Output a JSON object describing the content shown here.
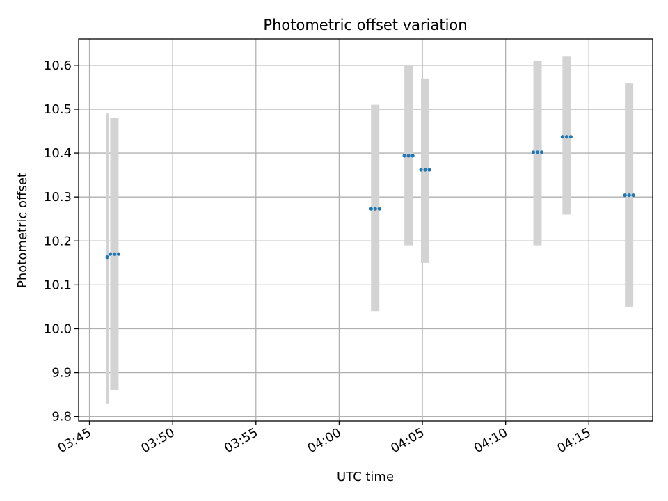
{
  "chart_data": {
    "type": "scatter",
    "title": "Photometric offset variation",
    "xlabel": "UTC time",
    "ylabel": "Photometric offset",
    "x_ticks": [
      "03:45",
      "03:50",
      "03:55",
      "04:00",
      "04:05",
      "04:10",
      "04:15"
    ],
    "x_tick_minutes": [
      225,
      230,
      235,
      240,
      245,
      250,
      255
    ],
    "y_ticks": [
      "9.8",
      "9.9",
      "10.0",
      "10.1",
      "10.2",
      "10.3",
      "10.4",
      "10.5",
      "10.6"
    ],
    "y_tick_values": [
      9.8,
      9.9,
      10.0,
      10.1,
      10.2,
      10.3,
      10.4,
      10.5,
      10.6
    ],
    "xlim": [
      "03:44:21",
      "04:18:50"
    ],
    "ylim": [
      9.79,
      10.66
    ],
    "grid": true,
    "colors": {
      "points": "#1f77b4",
      "error_bars": "#d3d3d3",
      "grid": "#b0b0b0"
    },
    "error_bars": [
      {
        "time": "03:46:04",
        "low": 9.83,
        "high": 10.49,
        "width": "thin"
      },
      {
        "time": "03:46:30",
        "low": 9.86,
        "high": 10.48,
        "width": "wide"
      },
      {
        "time": "04:02:10",
        "low": 10.04,
        "high": 10.51,
        "width": "wide"
      },
      {
        "time": "04:04:10",
        "low": 10.19,
        "high": 10.6,
        "width": "wide"
      },
      {
        "time": "04:05:10",
        "low": 10.15,
        "high": 10.57,
        "width": "wide"
      },
      {
        "time": "04:11:55",
        "low": 10.19,
        "high": 10.61,
        "width": "wide"
      },
      {
        "time": "04:13:40",
        "low": 10.26,
        "high": 10.62,
        "width": "wide"
      },
      {
        "time": "04:17:25",
        "low": 10.05,
        "high": 10.56,
        "width": "wide"
      }
    ],
    "points": [
      {
        "time": "03:46:04",
        "value": 10.163
      },
      {
        "time": "03:46:15",
        "value": 10.17
      },
      {
        "time": "03:46:30",
        "value": 10.17
      },
      {
        "time": "03:46:45",
        "value": 10.17
      },
      {
        "time": "04:01:55",
        "value": 10.273
      },
      {
        "time": "04:02:10",
        "value": 10.273
      },
      {
        "time": "04:02:25",
        "value": 10.273
      },
      {
        "time": "04:03:55",
        "value": 10.394
      },
      {
        "time": "04:04:10",
        "value": 10.394
      },
      {
        "time": "04:04:25",
        "value": 10.394
      },
      {
        "time": "04:04:55",
        "value": 10.362
      },
      {
        "time": "04:05:10",
        "value": 10.362
      },
      {
        "time": "04:05:25",
        "value": 10.362
      },
      {
        "time": "04:11:40",
        "value": 10.402
      },
      {
        "time": "04:11:55",
        "value": 10.402
      },
      {
        "time": "04:12:10",
        "value": 10.402
      },
      {
        "time": "04:13:25",
        "value": 10.437
      },
      {
        "time": "04:13:40",
        "value": 10.437
      },
      {
        "time": "04:13:55",
        "value": 10.437
      },
      {
        "time": "04:17:10",
        "value": 10.304
      },
      {
        "time": "04:17:25",
        "value": 10.304
      },
      {
        "time": "04:17:40",
        "value": 10.304
      }
    ]
  }
}
